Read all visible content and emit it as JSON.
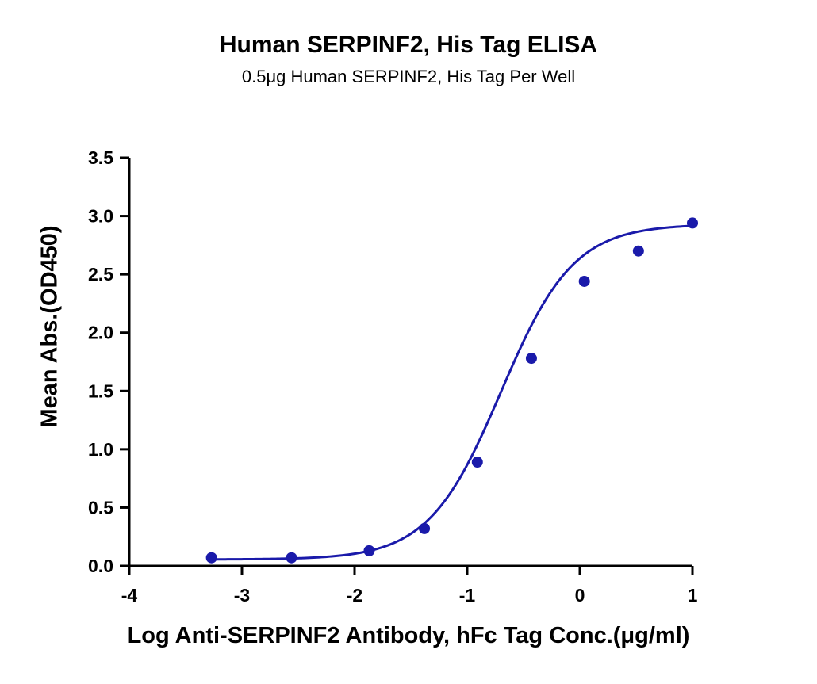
{
  "chart_data": {
    "type": "scatter",
    "title": "Human SERPINF2, His Tag ELISA",
    "subtitle": "0.5μg Human SERPINF2, His Tag Per Well",
    "xlabel": "Log Anti-SERPINF2 Antibody, hFc Tag Conc.(μg/ml)",
    "ylabel": "Mean Abs.(OD450)",
    "xlim": [
      -4,
      1
    ],
    "ylim": [
      0,
      3.5
    ],
    "xticks": [
      -4,
      -3,
      -2,
      -1,
      0,
      1
    ],
    "xtick_labels": [
      "-4",
      "-3",
      "-2",
      "-1",
      "0",
      "1"
    ],
    "yticks": [
      0,
      0.5,
      1,
      1.5,
      2,
      2.5,
      3,
      3.5
    ],
    "ytick_labels": [
      "0.0",
      "0.5",
      "1.0",
      "1.5",
      "2.0",
      "2.5",
      "3.0",
      "3.5"
    ],
    "grid": false,
    "color": "#1a1aaa",
    "series": [
      {
        "points": [
          {
            "x": -3.27,
            "y": 0.07
          },
          {
            "x": -2.56,
            "y": 0.07
          },
          {
            "x": -1.87,
            "y": 0.13
          },
          {
            "x": -1.38,
            "y": 0.32
          },
          {
            "x": -0.91,
            "y": 0.89
          },
          {
            "x": -0.43,
            "y": 1.78
          },
          {
            "x": 0.04,
            "y": 2.44
          },
          {
            "x": 0.52,
            "y": 2.7
          },
          {
            "x": 1.0,
            "y": 2.94
          }
        ],
        "fit": {
          "model": "4PL",
          "bottom": 0.055,
          "top": 2.93,
          "logEC50": -0.7,
          "hill": 1.35,
          "x_range": [
            -3.27,
            1.0
          ]
        }
      }
    ]
  }
}
